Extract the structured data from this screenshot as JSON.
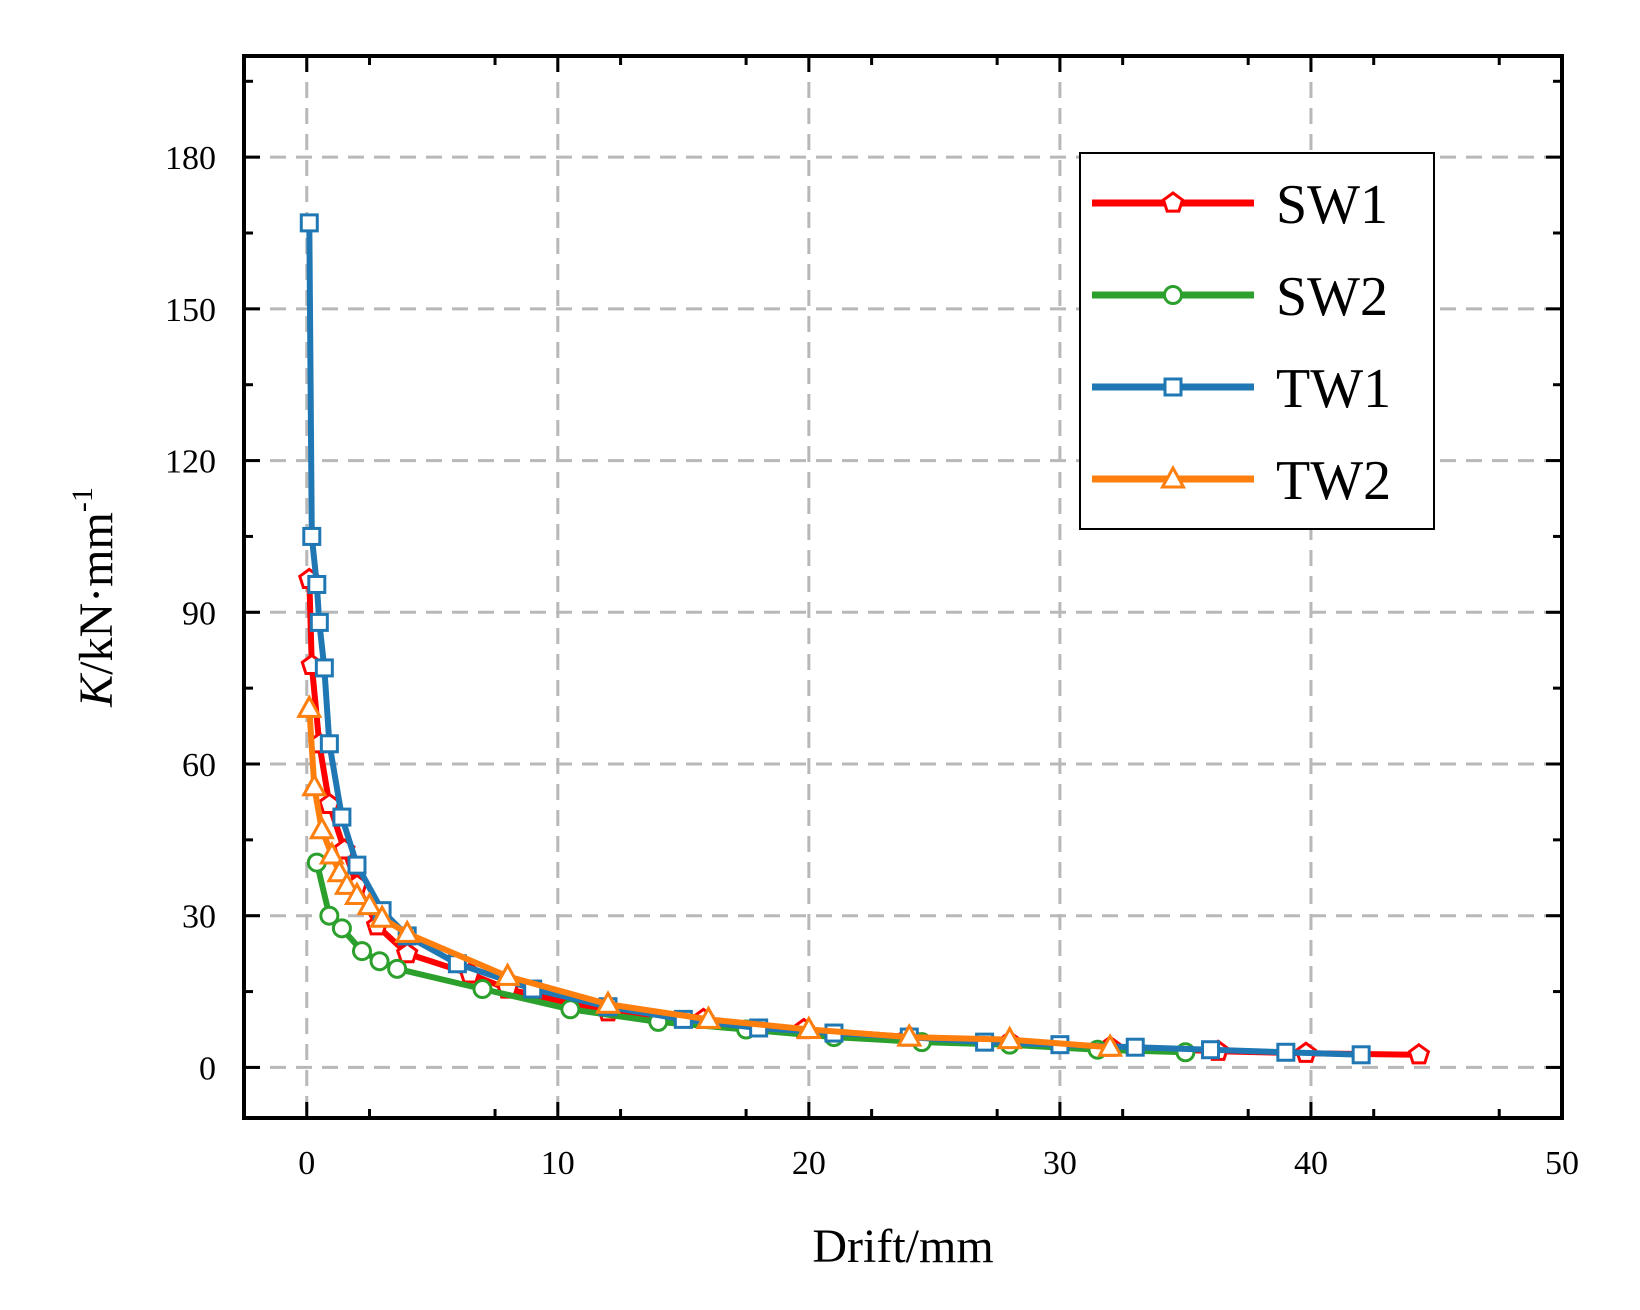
{
  "chart_data": {
    "type": "line",
    "title": "",
    "xlabel": "Drift/mm",
    "ylabel": {
      "italic": "K",
      "rest": "/kN·mm",
      "superscript": "-1"
    },
    "xlim": [
      -2.5,
      50
    ],
    "ylim": [
      -10,
      200
    ],
    "xticks": [
      0,
      10,
      20,
      30,
      40,
      50
    ],
    "yticks": [
      0,
      30,
      60,
      90,
      120,
      150,
      180
    ],
    "grid": true,
    "legend_position": "top-right",
    "series": [
      {
        "name": "SW1",
        "color": "#ff0000",
        "marker": "pentagon",
        "points": [
          [
            0.1,
            96.5
          ],
          [
            0.2,
            79.5
          ],
          [
            0.5,
            64
          ],
          [
            0.9,
            52
          ],
          [
            1.5,
            43
          ],
          [
            2.0,
            36
          ],
          [
            2.8,
            28
          ],
          [
            4.0,
            22.5
          ],
          [
            6.5,
            18.5
          ],
          [
            8.0,
            15.5
          ],
          [
            12.0,
            11
          ],
          [
            15.8,
            9.5
          ],
          [
            19.8,
            7.5
          ],
          [
            24.0,
            6
          ],
          [
            28.0,
            5
          ],
          [
            32.0,
            4
          ],
          [
            36.3,
            3.2
          ],
          [
            39.8,
            2.8
          ],
          [
            44.3,
            2.5
          ]
        ]
      },
      {
        "name": "SW2",
        "color": "#2ca02c",
        "marker": "circle",
        "points": [
          [
            0.4,
            40.5
          ],
          [
            0.9,
            30
          ],
          [
            1.4,
            27.5
          ],
          [
            2.2,
            23
          ],
          [
            2.9,
            21
          ],
          [
            3.6,
            19.5
          ],
          [
            7.0,
            15.5
          ],
          [
            10.5,
            11.5
          ],
          [
            14.0,
            9
          ],
          [
            17.5,
            7.5
          ],
          [
            21.0,
            6
          ],
          [
            24.5,
            5
          ],
          [
            28.0,
            4.5
          ],
          [
            31.5,
            3.5
          ],
          [
            35.0,
            3
          ]
        ]
      },
      {
        "name": "TW1",
        "color": "#1f77b4",
        "marker": "square",
        "points": [
          [
            0.1,
            167
          ],
          [
            0.2,
            105
          ],
          [
            0.4,
            95.5
          ],
          [
            0.5,
            88
          ],
          [
            0.7,
            79
          ],
          [
            0.9,
            64
          ],
          [
            1.4,
            49.5
          ],
          [
            2.0,
            40
          ],
          [
            3.0,
            31
          ],
          [
            4.0,
            26
          ],
          [
            6.0,
            20.5
          ],
          [
            9.0,
            15.5
          ],
          [
            12.0,
            12
          ],
          [
            15.0,
            9.5
          ],
          [
            18.0,
            7.8
          ],
          [
            21.0,
            6.8
          ],
          [
            24.0,
            6
          ],
          [
            27.0,
            5
          ],
          [
            30.0,
            4.5
          ],
          [
            33.0,
            4
          ],
          [
            36.0,
            3.5
          ],
          [
            39.0,
            3
          ],
          [
            42.0,
            2.5
          ]
        ]
      },
      {
        "name": "TW2",
        "color": "#ff7f0e",
        "marker": "triangle",
        "points": [
          [
            0.1,
            71
          ],
          [
            0.3,
            55.5
          ],
          [
            0.6,
            47
          ],
          [
            1.0,
            42
          ],
          [
            1.3,
            38.5
          ],
          [
            1.6,
            36
          ],
          [
            2.0,
            34
          ],
          [
            2.5,
            32
          ],
          [
            3.0,
            29.5
          ],
          [
            4.0,
            26.5
          ],
          [
            8.0,
            18
          ],
          [
            12.0,
            12.5
          ],
          [
            16.0,
            9.5
          ],
          [
            20.0,
            7.5
          ],
          [
            24.0,
            6
          ],
          [
            28.0,
            5.5
          ],
          [
            32.0,
            4
          ]
        ]
      }
    ]
  }
}
